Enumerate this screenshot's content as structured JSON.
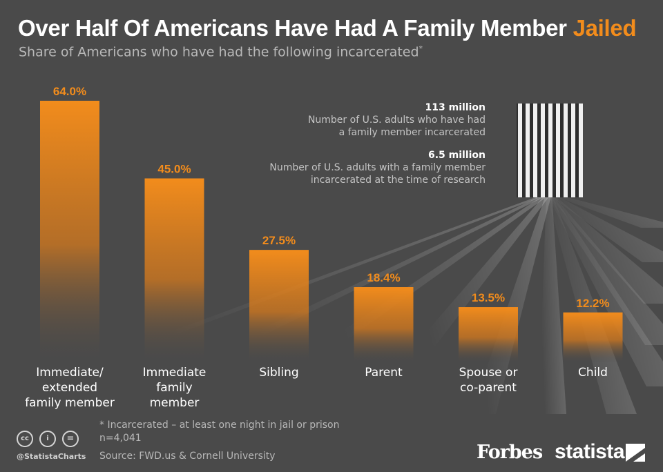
{
  "header": {
    "title": "Over Half Of Americans Have Had A Family Member",
    "title_accent": "Jailed",
    "subtitle": "Share of Americans who have had the following incarcerated",
    "subtitle_marker": "*"
  },
  "callouts": [
    {
      "value": "113 million",
      "line1": "Number of U.S. adults who have had",
      "line2": "a family member incarcerated"
    },
    {
      "value": "6.5 million",
      "line1": "Number of U.S. adults with a family member",
      "line2": "incarcerated at the time of research"
    }
  ],
  "chart_data": {
    "type": "bar",
    "title": "Over Half Of Americans Have Had A Family Member Jailed",
    "subtitle": "Share of Americans who have had the following incarcerated*",
    "categories": [
      [
        "Immediate/",
        "extended",
        "family member"
      ],
      [
        "Immediate",
        "family",
        "member"
      ],
      [
        "Sibling"
      ],
      [
        "Parent"
      ],
      [
        "Spouse or",
        "co-parent"
      ],
      [
        "Child"
      ]
    ],
    "values": [
      64.0,
      45.0,
      27.5,
      18.4,
      13.5,
      12.2
    ],
    "value_labels": [
      "64.0%",
      "45.0%",
      "27.5%",
      "18.4%",
      "13.5%",
      "12.2%"
    ],
    "unit": "%",
    "ylim": [
      0,
      64
    ],
    "grid": false,
    "legend": "none"
  },
  "footer": {
    "note": "* Incarcerated – at least one night in jail or prison",
    "sample": "n=4,041",
    "source": "Source: FWD.us & Cornell University",
    "handle": "@StatistaCharts",
    "cc_symbols": [
      "cc",
      "i",
      "="
    ],
    "brand_forbes": "Forbes",
    "brand_statista": "statista"
  },
  "colors": {
    "background": "#4a4a4a",
    "bar_top": "#f28c1c",
    "accent": "#f28c1c",
    "text": "#ffffff",
    "muted_text": "#b8b8b8"
  },
  "icons": [
    "jail-bars-icon",
    "creative-commons-icon",
    "attribution-icon",
    "no-derivatives-icon",
    "statista-logo-icon"
  ]
}
